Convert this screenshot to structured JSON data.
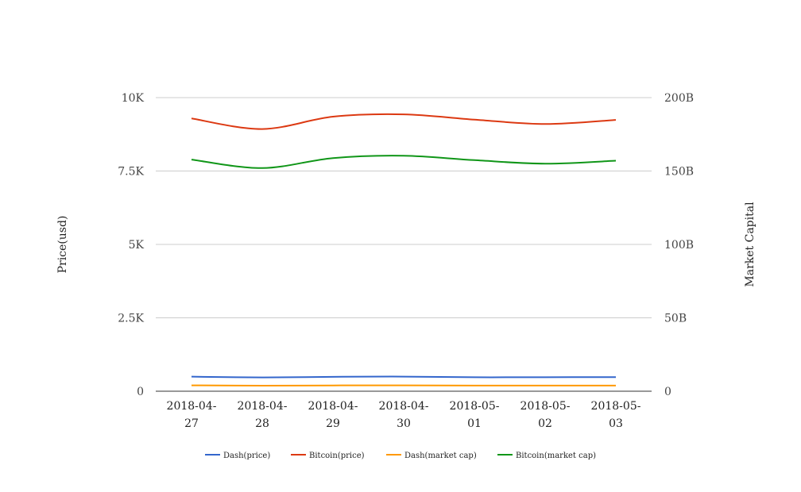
{
  "chart_data": {
    "type": "line",
    "categories": [
      "2018-04-27",
      "2018-04-28",
      "2018-04-29",
      "2018-04-30",
      "2018-05-01",
      "2018-05-02",
      "2018-05-03"
    ],
    "x_tick_labels": [
      [
        "2018-04-",
        "27"
      ],
      [
        "2018-04-",
        "28"
      ],
      [
        "2018-04-",
        "29"
      ],
      [
        "2018-04-",
        "30"
      ],
      [
        "2018-05-",
        "01"
      ],
      [
        "2018-05-",
        "02"
      ],
      [
        "2018-05-",
        "03"
      ]
    ],
    "y_left": {
      "label": "Price(usd)",
      "range": [
        0,
        10000
      ],
      "ticks": [
        0,
        2500,
        5000,
        7500,
        10000
      ],
      "tick_labels": [
        "0",
        "2.5K",
        "5K",
        "7.5K",
        "10K"
      ]
    },
    "y_right": {
      "label": "Market Capital",
      "range": [
        0,
        200000000000
      ],
      "ticks": [
        0,
        50000000000,
        100000000000,
        150000000000,
        200000000000
      ],
      "tick_labels": [
        "0",
        "50B",
        "100B",
        "150B",
        "200B"
      ]
    },
    "grid": true,
    "legend_position": "bottom",
    "series": [
      {
        "name": "Dash(price)",
        "axis": "left",
        "color": "#3366cc",
        "values": [
          495,
          470,
          490,
          498,
          475,
          478,
          480
        ]
      },
      {
        "name": "Bitcoin(price)",
        "axis": "left",
        "color": "#dc3912",
        "values": [
          9290,
          8930,
          9350,
          9430,
          9250,
          9100,
          9240
        ]
      },
      {
        "name": "Dash(market cap)",
        "axis": "right",
        "color": "#ff9900",
        "values": [
          4000000000,
          3800000000,
          3950000000,
          4000000000,
          3850000000,
          3850000000,
          3860000000
        ]
      },
      {
        "name": "Bitcoin(market cap)",
        "axis": "right",
        "color": "#109618",
        "values": [
          157800000000,
          152000000000,
          158800000000,
          160400000000,
          157400000000,
          155000000000,
          157000000000
        ]
      }
    ]
  }
}
